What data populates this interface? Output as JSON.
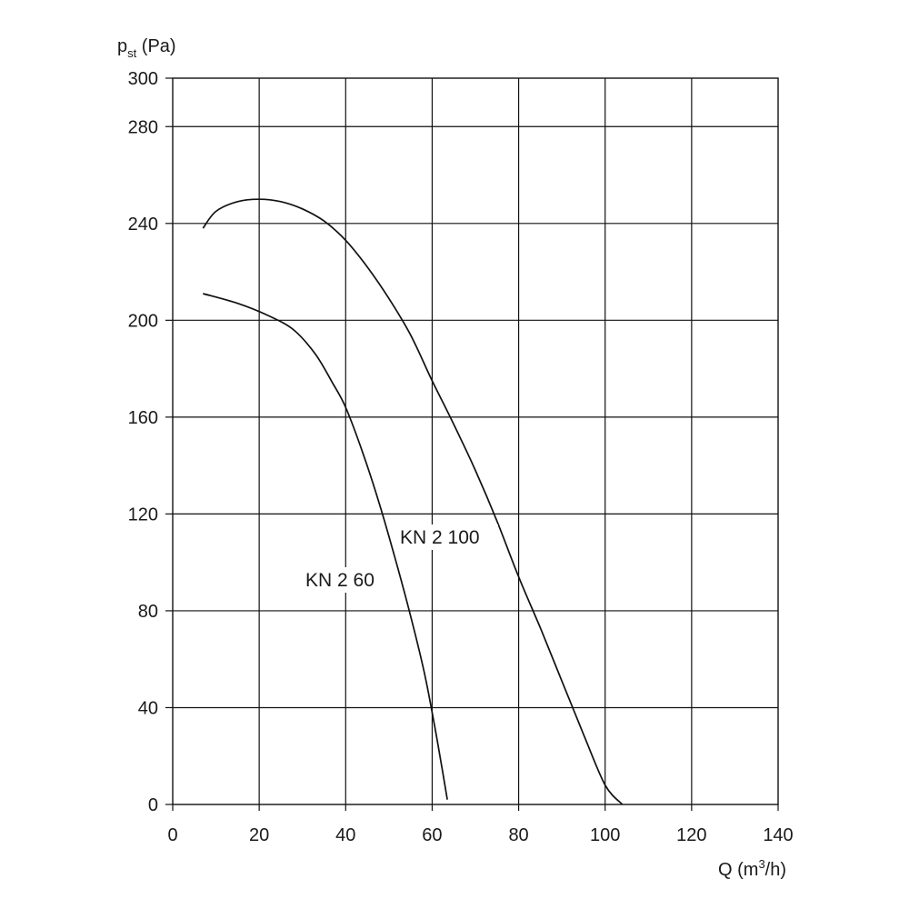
{
  "chart_data": {
    "type": "line",
    "title": "",
    "xlabel": {
      "main": "Q (m",
      "sup": "3",
      "tail": "/h)"
    },
    "ylabel": {
      "main": "p",
      "sub": "st",
      "tail": " (Pa)"
    },
    "xlim": [
      0,
      140
    ],
    "ylim": [
      0,
      300
    ],
    "x_ticks": [
      0,
      20,
      40,
      60,
      80,
      100,
      120,
      140
    ],
    "y_ticks": [
      0,
      40,
      80,
      120,
      160,
      200,
      240,
      280,
      300
    ],
    "grid_x": [
      20,
      40,
      60,
      80,
      100,
      120
    ],
    "grid_y": [
      40,
      80,
      120,
      160,
      200,
      240,
      280
    ],
    "grid": true,
    "legend": "none",
    "series": [
      {
        "name": "KN 2 60",
        "points": [
          [
            7,
            211
          ],
          [
            15,
            207
          ],
          [
            22,
            202
          ],
          [
            28,
            196
          ],
          [
            33,
            186
          ],
          [
            37,
            174
          ],
          [
            40,
            164
          ],
          [
            44,
            145
          ],
          [
            48,
            123
          ],
          [
            52,
            98
          ],
          [
            55,
            78
          ],
          [
            58,
            56
          ],
          [
            60,
            38
          ],
          [
            62,
            18
          ],
          [
            63.5,
            2
          ]
        ]
      },
      {
        "name": "KN 2 100",
        "points": [
          [
            7,
            238
          ],
          [
            10,
            245
          ],
          [
            15,
            249
          ],
          [
            20,
            250
          ],
          [
            25,
            249
          ],
          [
            30,
            246
          ],
          [
            35,
            241
          ],
          [
            40,
            233
          ],
          [
            45,
            222
          ],
          [
            50,
            209
          ],
          [
            55,
            194
          ],
          [
            60,
            175
          ],
          [
            65,
            157
          ],
          [
            70,
            138
          ],
          [
            75,
            117
          ],
          [
            80,
            94
          ],
          [
            85,
            73
          ],
          [
            90,
            51
          ],
          [
            95,
            29
          ],
          [
            100,
            8
          ],
          [
            104,
            0
          ]
        ]
      }
    ]
  }
}
